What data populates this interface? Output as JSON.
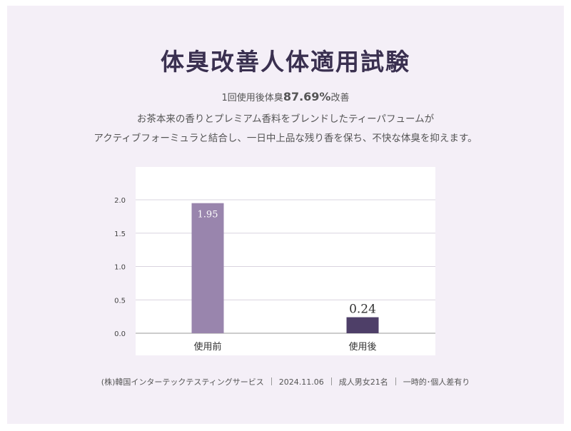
{
  "title": "体臭改善人体適用試験",
  "headline_prefix": "1回使用後体臭",
  "headline_value": "87.69%",
  "headline_suffix": "改善",
  "description": [
    "お茶本来の香りとプレミアム香料をブレンドしたティーパフュームが",
    "アクティブフォーミュラと結合し、一日中上品な残り香を保ち、不快な体臭を抑えます。"
  ],
  "chart_data": {
    "type": "bar",
    "categories": [
      "使用前",
      "使用後"
    ],
    "values": [
      1.95,
      0.24
    ],
    "value_labels": [
      "1.95",
      "0.24"
    ],
    "y_ticks": [
      "0.0",
      "0.5",
      "1.0",
      "1.5",
      "2.0"
    ],
    "ylim": [
      0,
      2.0
    ],
    "grid": true,
    "bar_colors": [
      "#9985ad",
      "#4e3f68"
    ]
  },
  "footer": {
    "source": "(株)韓国インターテックテスティングサービス",
    "date": "2024.11.06",
    "subjects": "成人男女21名",
    "note": "一時的･個人差有り"
  }
}
